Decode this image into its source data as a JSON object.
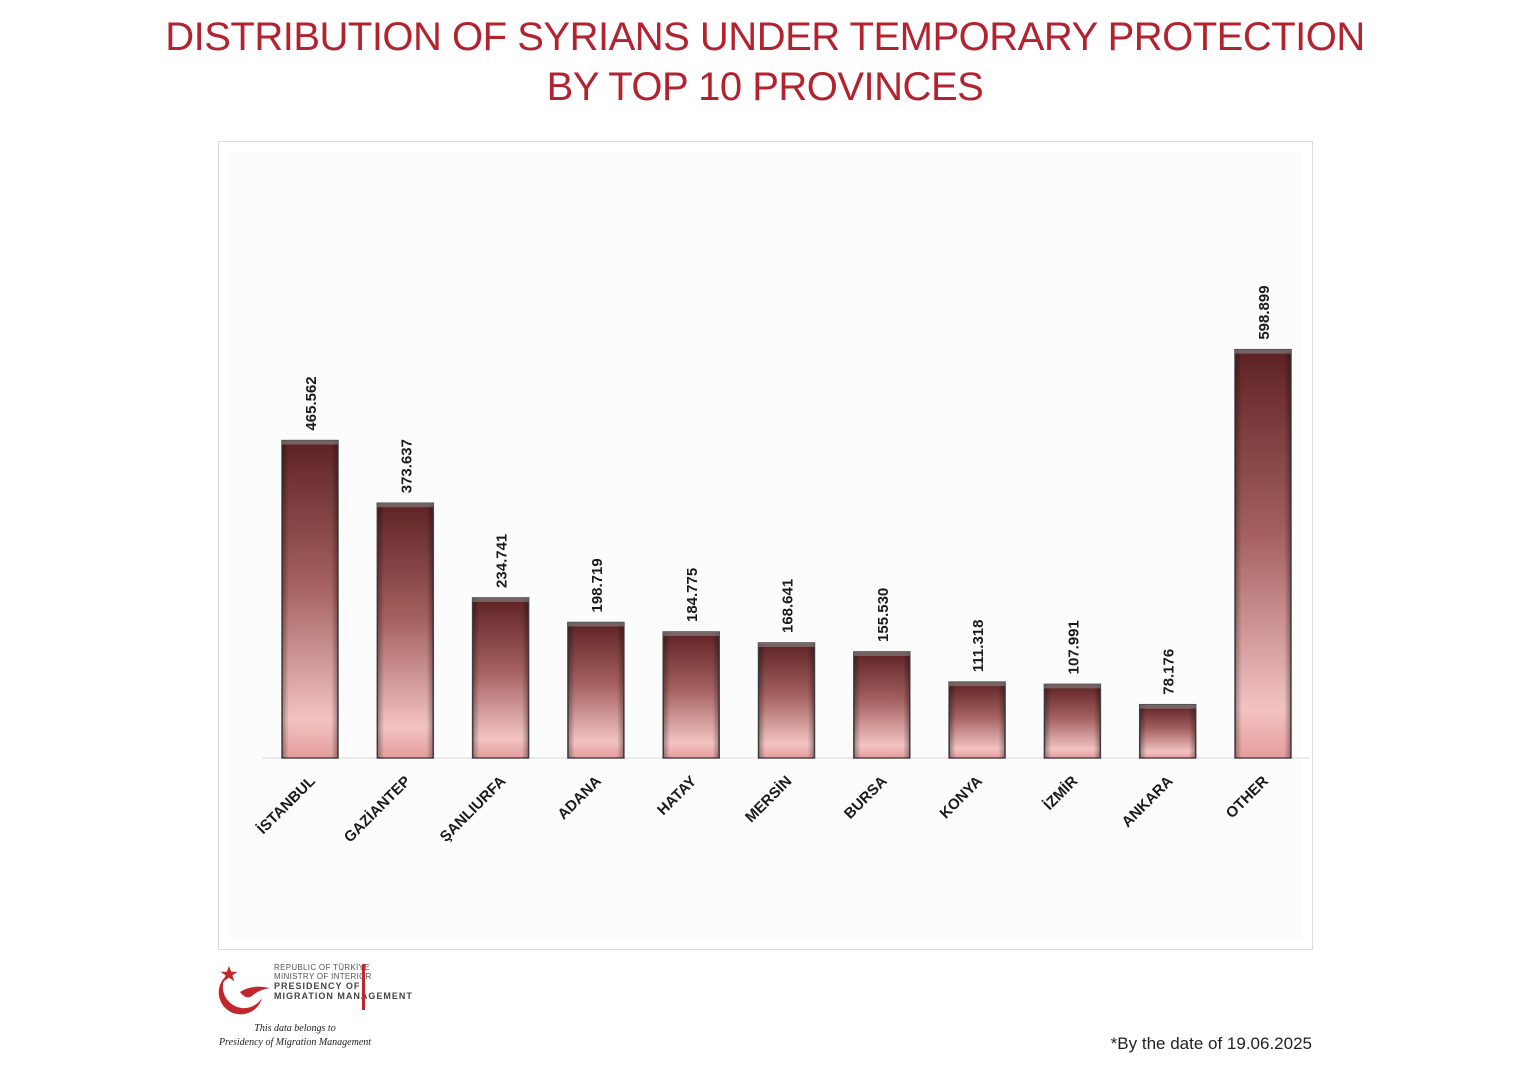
{
  "header": {
    "title_line1": "DISTRIBUTION OF SYRIANS UNDER TEMPORARY PROTECTION",
    "title_line2": "BY TOP 10 PROVINCES"
  },
  "chart_data": {
    "type": "bar",
    "title": "DISTRIBUTION OF SYRIANS UNDER TEMPORARY PROTECTION BY TOP 10 PROVINCES",
    "xlabel": "",
    "ylabel": "",
    "categories": [
      "İSTANBUL",
      "GAZİANTEP",
      "ŞANLIURFA",
      "ADANA",
      "HATAY",
      "MERSİN",
      "BURSA",
      "KONYA",
      "İZMİR",
      "ANKARA",
      "OTHER"
    ],
    "values": [
      465562,
      373637,
      234741,
      198719,
      184775,
      168641,
      155530,
      111318,
      107991,
      78176,
      598899
    ],
    "data_labels": [
      "465.562",
      "373.637",
      "234.741",
      "198.719",
      "184.775",
      "168.641",
      "155.530",
      "111.318",
      "107.991",
      "78.176",
      "598.899"
    ],
    "ylim": [
      0,
      880000
    ],
    "grid": false,
    "legend": "none",
    "colors": {
      "bar_dark": "#6b2a2c",
      "bar_light": "#f0b8b8",
      "bar_edge": "#4a4a4a"
    }
  },
  "branding": {
    "line1": "REPUBLIC OF TÜRKİYE",
    "line2": "MINISTRY OF INTERIOR",
    "line3": "PRESIDENCY OF",
    "line4": "MIGRATION MANAGEMENT",
    "credit_line1": "This data belongs to",
    "credit_line2": "Presidency of Migration Management",
    "accent": "#c0272d"
  },
  "footnote": "*By the date of 19.06.2025"
}
